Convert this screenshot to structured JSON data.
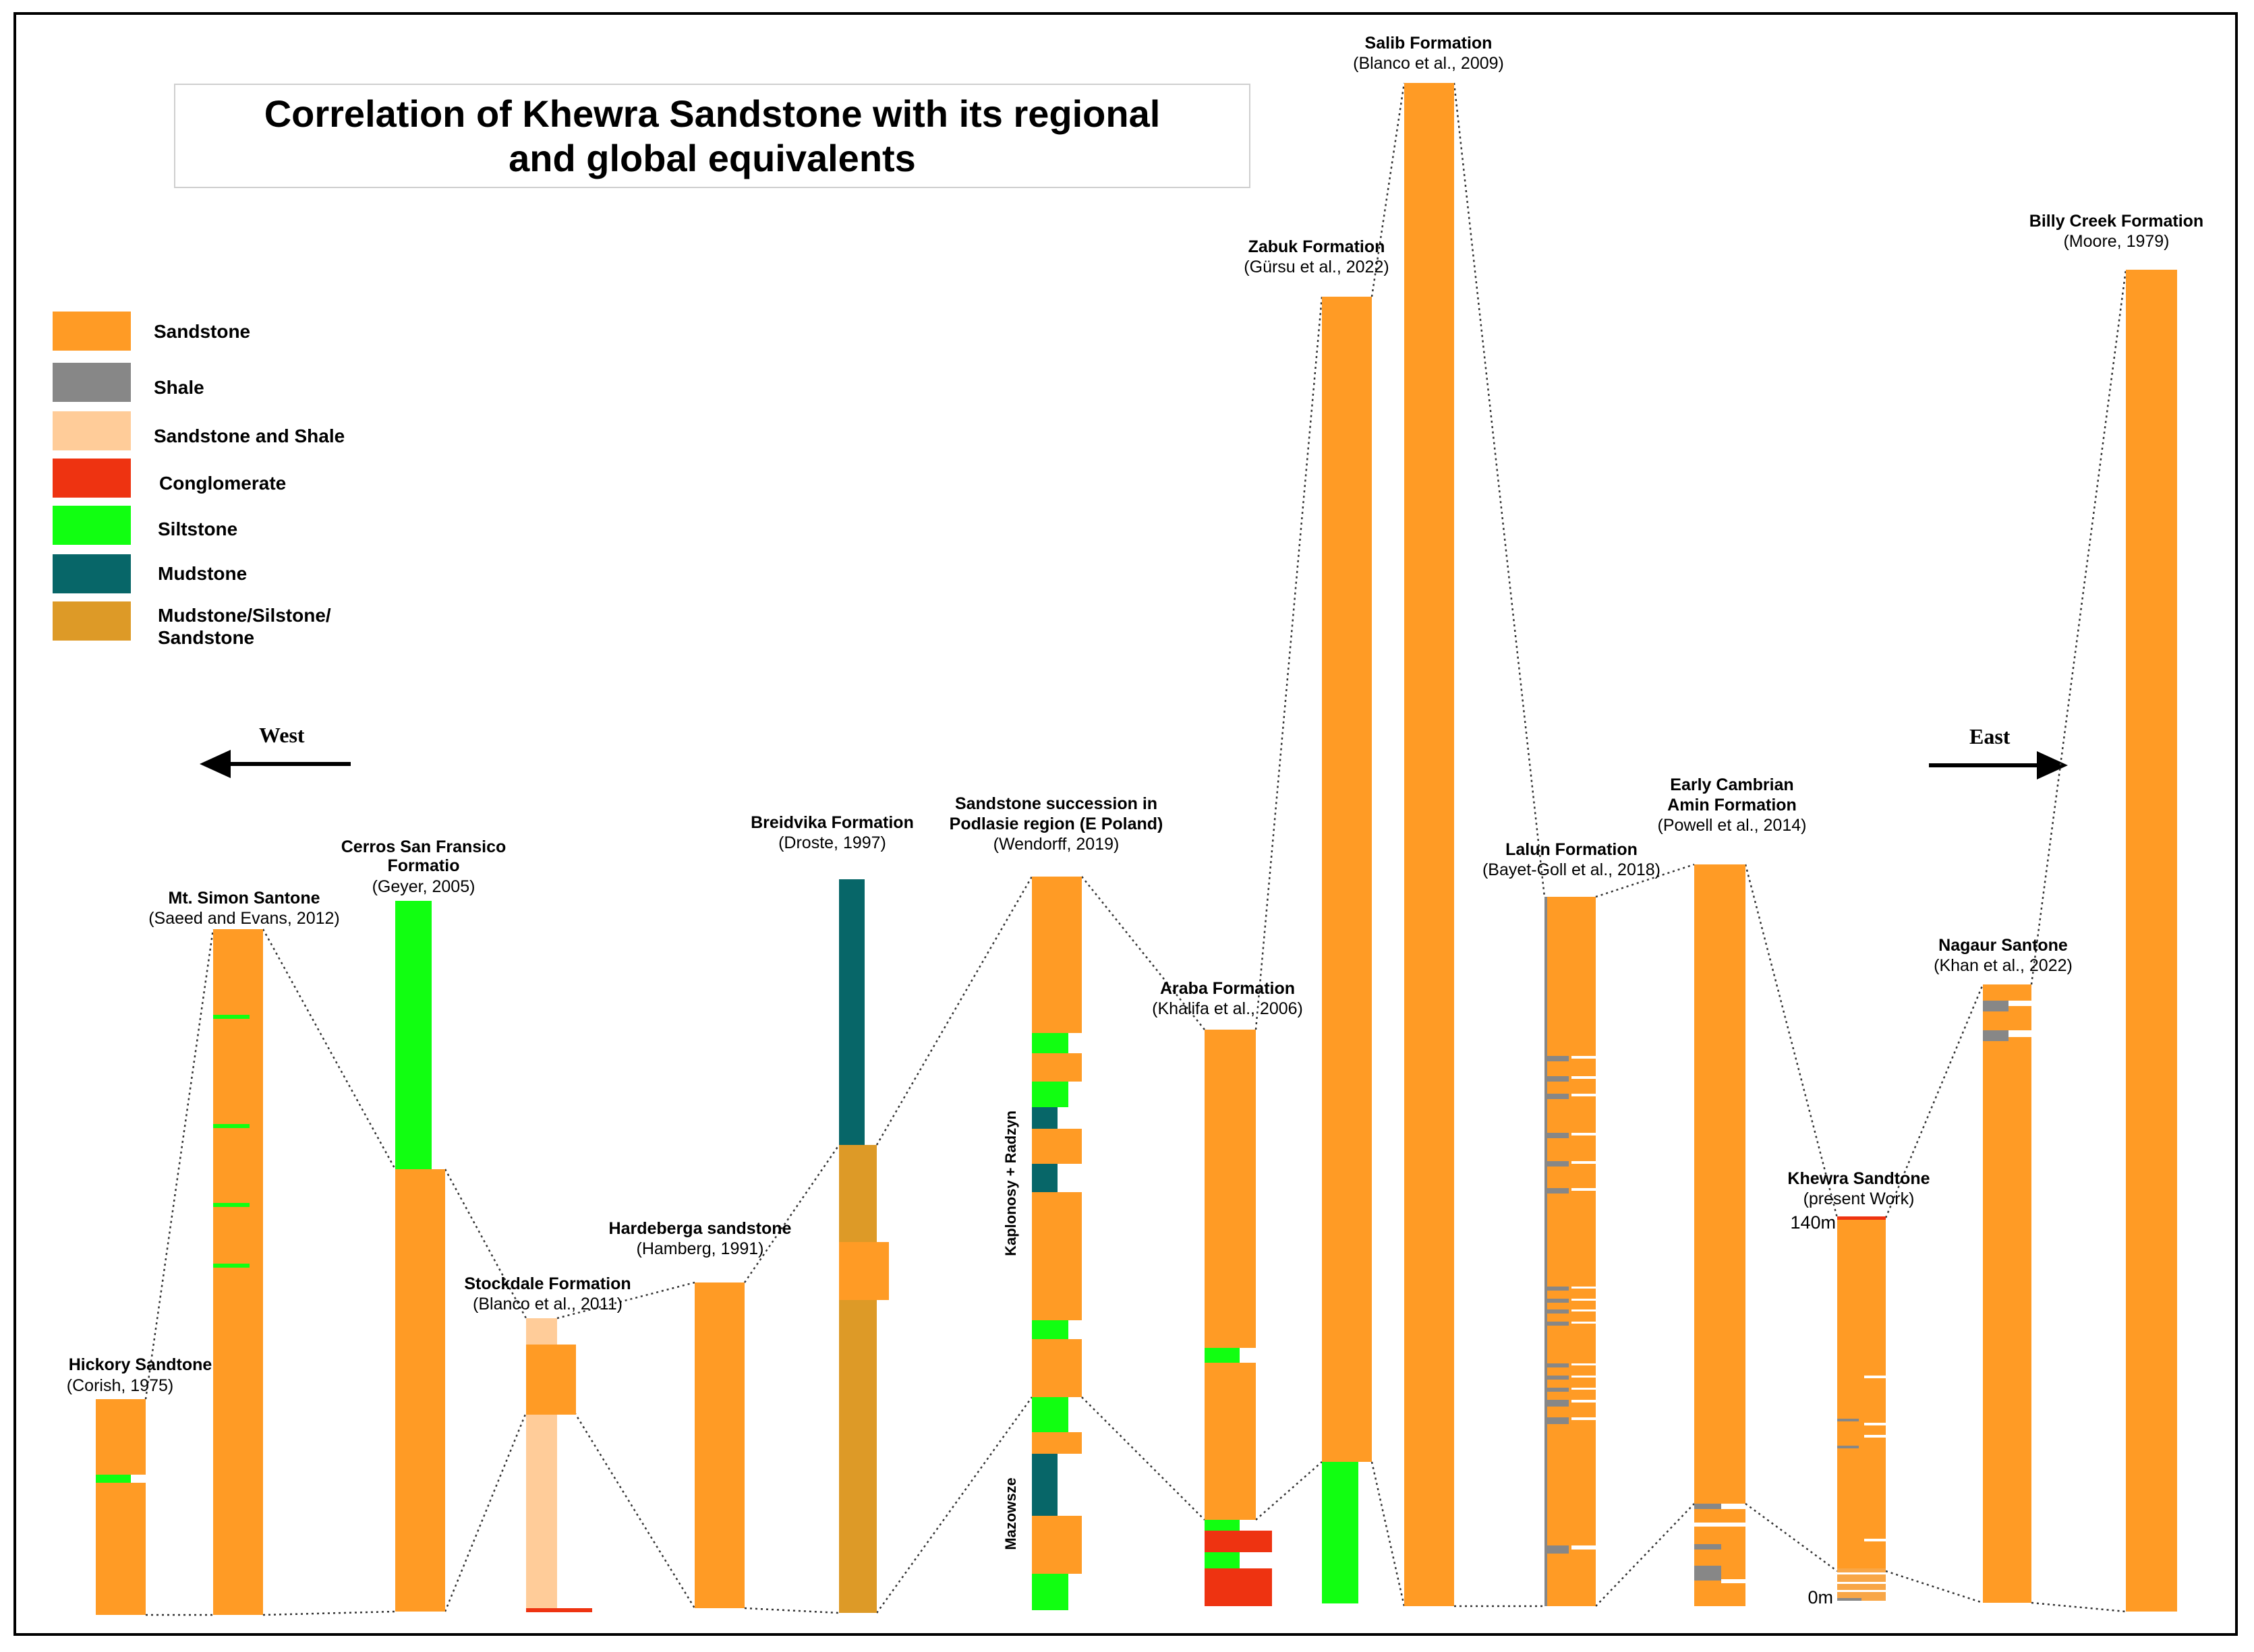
{
  "title": "Correlation of Khewra Sandstone with its regional and global equivalents",
  "legend": [
    {
      "label": "Sandstone",
      "color": "#FF9B25"
    },
    {
      "label": "Shale",
      "color": "#878787"
    },
    {
      "label": "Sandstone and Shale",
      "color": "#FFCC99"
    },
    {
      "label": "Conglomerate",
      "color": "#EE3311"
    },
    {
      "label": "Siltstone",
      "color": "#11FF11"
    },
    {
      "label": "Mudstone",
      "color": "#076668"
    },
    {
      "label": "Mudstone/Silstone/ Sandstone",
      "color": "#DD9A27"
    }
  ],
  "directions": {
    "west": "West",
    "east": "East"
  },
  "columns": [
    {
      "name": "Hickory Sandtone",
      "ref": "(Corish, 1975)"
    },
    {
      "name": "Mt. Simon Santone",
      "ref": "(Saeed and Evans, 2012)"
    },
    {
      "name": "Cerros San Fransico Formatio",
      "ref": "(Geyer, 2005)"
    },
    {
      "name": "Stockdale Formation",
      "ref": "(Blanco et al., 2011)"
    },
    {
      "name": "Hardeberga sandstone",
      "ref": "(Hamberg, 1991)"
    },
    {
      "name": "Breidvika Formation",
      "ref": "(Droste, 1997)"
    },
    {
      "name": "Sandstone succession in Podlasie region (E Poland)",
      "ref": "(Wendorff, 2019)"
    },
    {
      "name": "Araba Formation",
      "ref": "(Khalifa et al., 2006)"
    },
    {
      "name": "Zabuk Formation",
      "ref": "(Gürsu et al., 2022)"
    },
    {
      "name": "Salib Formation",
      "ref": "(Blanco et al., 2009)"
    },
    {
      "name": "Lalun Formation",
      "ref": "(Bayet-Goll et al., 2018)"
    },
    {
      "name": "Early Cambrian Amin Formation",
      "ref": "(Powell et al., 2014)"
    },
    {
      "name": "Khewra Sandtone",
      "ref": "(present Work)"
    },
    {
      "name": "Nagaur Santone",
      "ref": "(Khan et al., 2022)"
    },
    {
      "name": "Billy Creek Formation",
      "ref": "(Moore, 1979)"
    }
  ],
  "side_labels": {
    "upper": "Kaplonosy + Radzyn",
    "lower": "Mazowsze"
  },
  "scale": {
    "top": "140m",
    "bottom": "0m"
  }
}
